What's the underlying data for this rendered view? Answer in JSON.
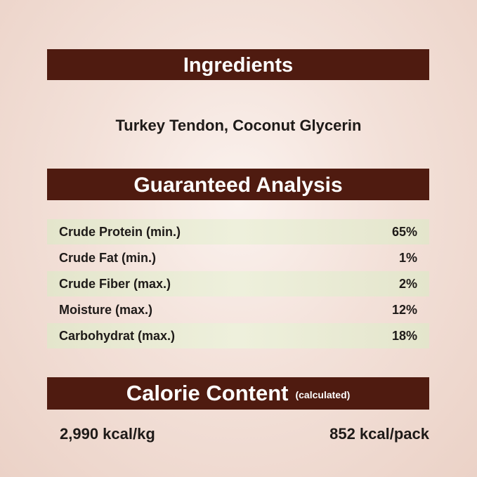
{
  "ingredients": {
    "title": "Ingredients",
    "text": "Turkey Tendon, Coconut Glycerin"
  },
  "analysis": {
    "title": "Guaranteed Analysis",
    "rows": [
      {
        "label": "Crude Protein (min.)",
        "value": "65%"
      },
      {
        "label": "Crude Fat (min.)",
        "value": "1%"
      },
      {
        "label": "Crude Fiber (max.)",
        "value": "2%"
      },
      {
        "label": "Moisture (max.)",
        "value": "12%"
      },
      {
        "label": "Carbohydrat (max.)",
        "value": "18%"
      }
    ]
  },
  "calorie": {
    "title": "Calorie Content",
    "subtitle": "(calculated)",
    "per_kg": "2,990 kcal/kg",
    "per_pack": "852 kcal/pack"
  },
  "colors": {
    "header_bar": "#4f1b10",
    "row_highlight": "#e8ead3",
    "background": "#efd9d0"
  }
}
